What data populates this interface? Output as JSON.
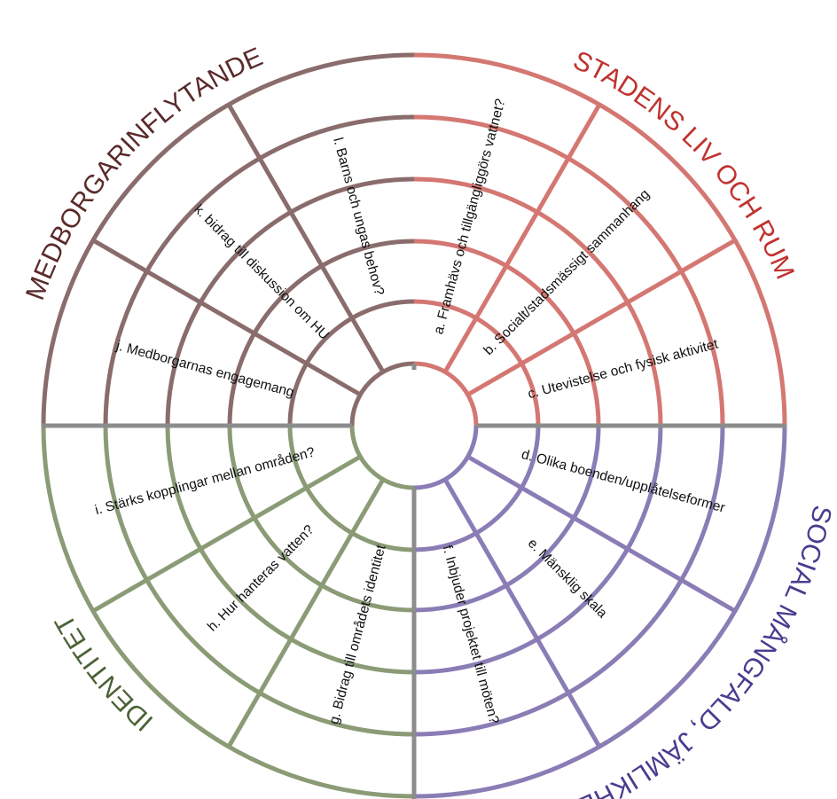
{
  "colors": {
    "stadensLiv": "#d47772",
    "social": "#8a7db5",
    "identitet": "#8a9b76",
    "medborgar": "#8a6c6c",
    "divider": "#8c8c8c"
  },
  "categories": [
    {
      "key": "stadensLiv",
      "title": "STADENS LIV OCH RUM",
      "titleColor": "#c0322e"
    },
    {
      "key": "social",
      "title": "SOCIAL MÅNGFALD, JÄMLIKHET",
      "titleColor": "#4b3b8f"
    },
    {
      "key": "identitet",
      "title": "IDENTITET",
      "titleColor": "#4a6235"
    },
    {
      "key": "medborgar",
      "title": "MEDBORGARINFLYTANDE",
      "titleColor": "#5a2a2a"
    }
  ],
  "spokes": [
    {
      "label": "a. Framhävs och tillgängliggörs vattnet?"
    },
    {
      "label": "b. Socialt/stadsmässigt sammanhang"
    },
    {
      "label": "c. Utevistelse och fysisk aktivitet"
    },
    {
      "label": "d. Olika boenden/upplåtelseformer"
    },
    {
      "label": "e. Mänsklig skala"
    },
    {
      "label": "f. Inbjuder projektet till möten?"
    },
    {
      "label": "g. Bidrag till områdets identitet"
    },
    {
      "label": "h. Hur hanteras vatten?"
    },
    {
      "label": "i. Stärks kopplingar mellan områden?"
    },
    {
      "label": "j. Medborgarnas engagemang"
    },
    {
      "label": "k. bidrag till diskussion om HU"
    },
    {
      "label": "l. Barns och ungas behov?"
    }
  ]
}
